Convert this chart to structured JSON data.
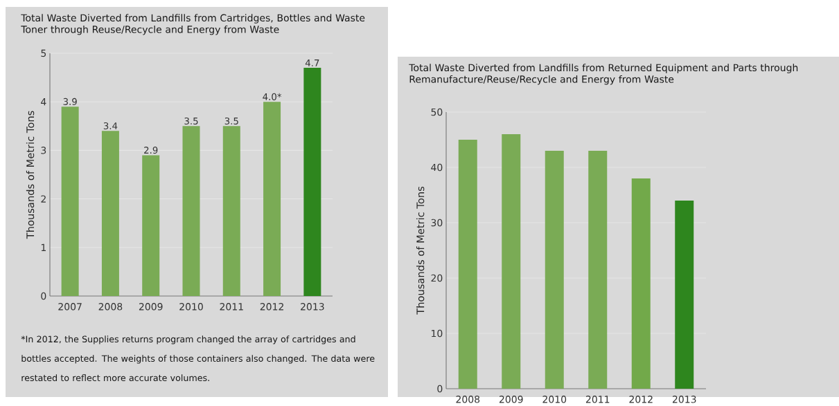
{
  "chart_data": [
    {
      "type": "bar",
      "title": "Total Waste Diverted from Landfills from Cartridges, Bottles and Waste Toner through Reuse/Recycle and Energy from Waste",
      "ylabel": "Thousands of Metric Tons",
      "categories": [
        "2007",
        "2008",
        "2009",
        "2010",
        "2011",
        "2012",
        "2013"
      ],
      "values": [
        3.9,
        3.4,
        2.9,
        3.5,
        3.5,
        4.0,
        4.7
      ],
      "value_labels": [
        "3.9",
        "3.4",
        "2.9",
        "3.5",
        "3.5",
        "4.0*",
        "4.7"
      ],
      "colors": [
        "#7aab55",
        "#7aab55",
        "#7aab55",
        "#7aab55",
        "#7aab55",
        "#7aab55",
        "#2e861e"
      ],
      "ylim": [
        0,
        5
      ],
      "yticks": [
        0,
        1,
        2,
        3,
        4,
        5
      ],
      "grid": "y",
      "annotations": [
        "*In 2012, the Supplies returns program changed the array of cartridges and bottles accepted. The weights of those containers also changed. The data were restated to reflect more accurate volumes."
      ]
    },
    {
      "type": "bar",
      "title": "Total Waste Diverted from Landfills from Returned Equipment and Parts through Remanufacture/Reuse/Recycle and Energy from Waste",
      "ylabel": "Thousands of Metric Tons",
      "categories": [
        "2008",
        "2009",
        "2010",
        "2011",
        "2012",
        "2013"
      ],
      "values": [
        45,
        46,
        43,
        43,
        38,
        34
      ],
      "colors": [
        "#7aab55",
        "#7aab55",
        "#7aab55",
        "#7aab55",
        "#72a94a",
        "#2e861e"
      ],
      "ylim": [
        0,
        50
      ],
      "yticks": [
        0,
        10,
        20,
        30,
        40,
        50
      ],
      "grid": "y"
    }
  ]
}
